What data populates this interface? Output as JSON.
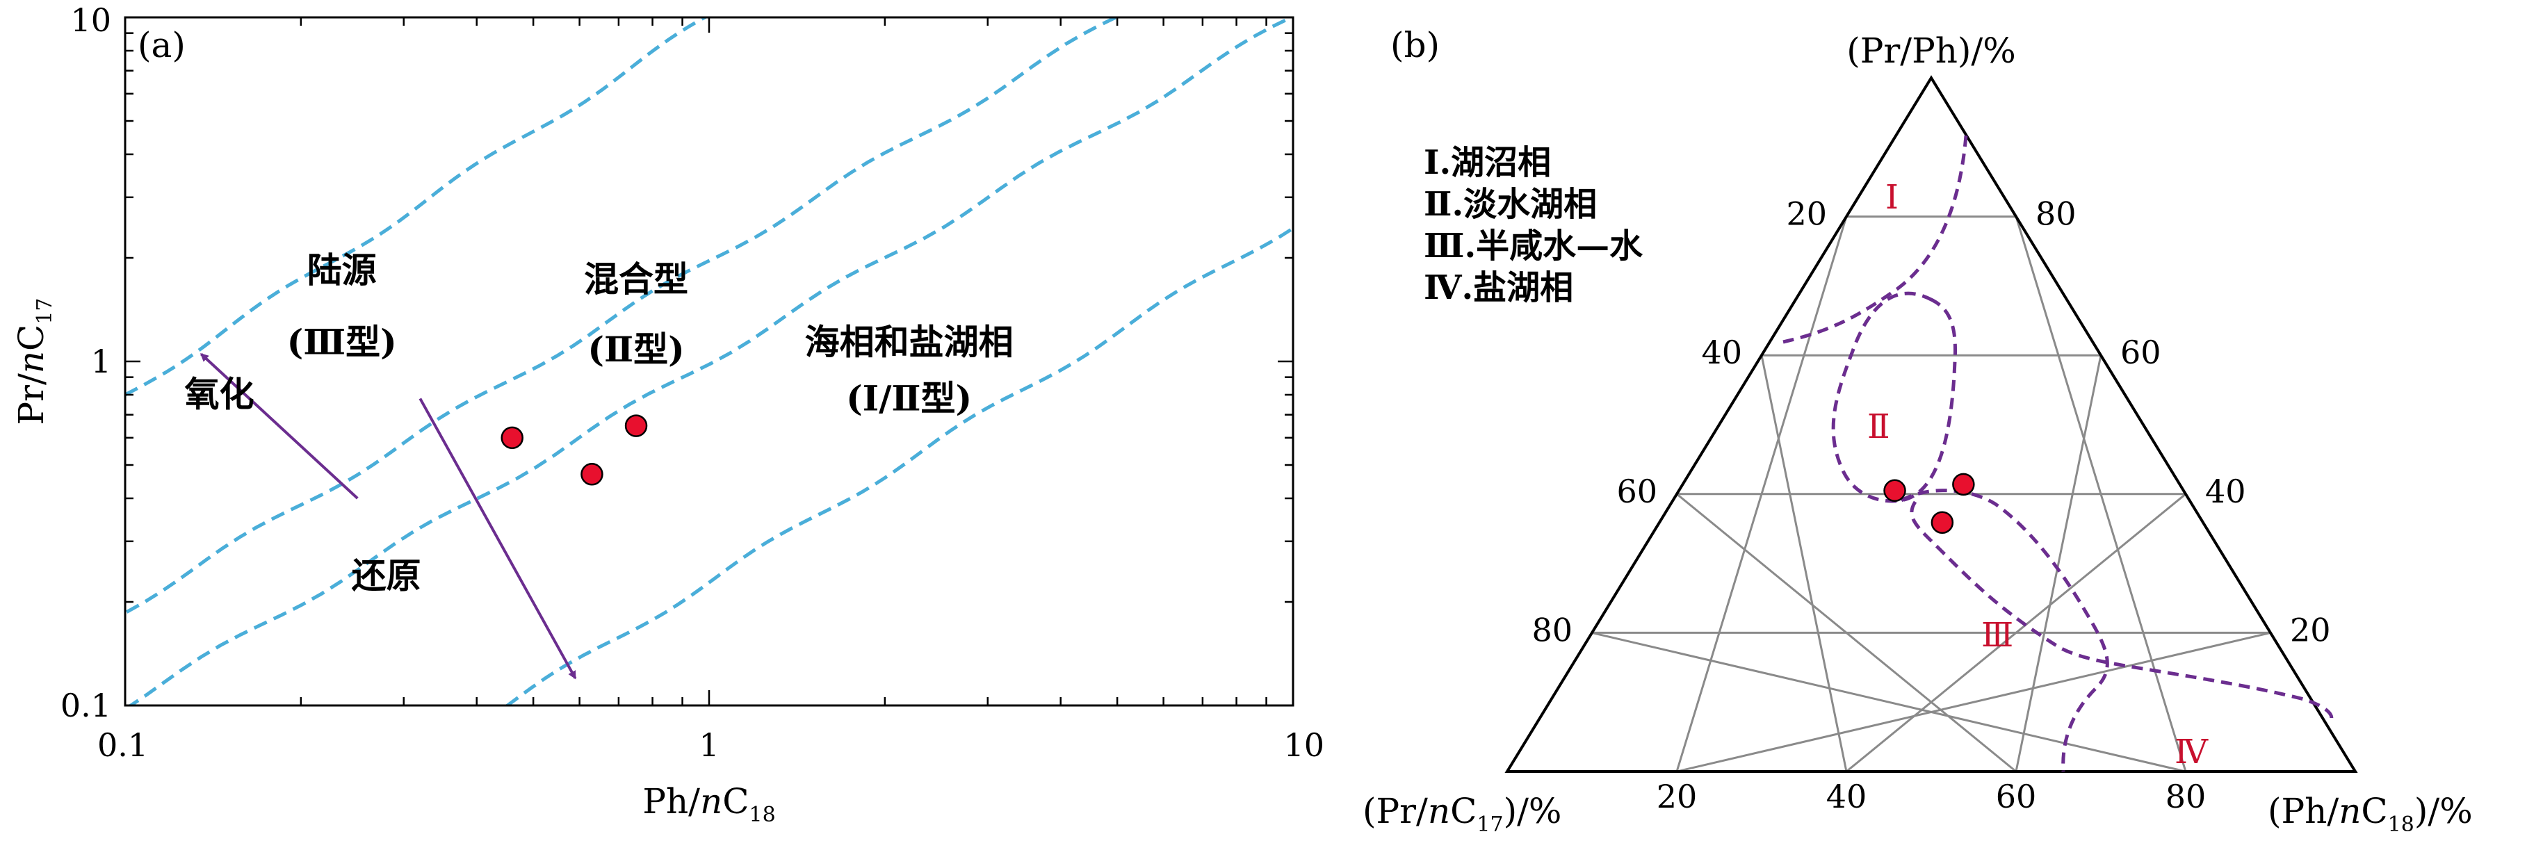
{
  "chart_data": [
    {
      "panel": "(a)",
      "type": "scatter",
      "x_scale": "log",
      "y_scale": "log",
      "xlim": [
        0.1,
        10
      ],
      "ylim": [
        0.1,
        10
      ],
      "xlabel_parts": [
        "Ph/",
        "n",
        "C",
        "18"
      ],
      "ylabel_parts": [
        "Pr/",
        "n",
        "C",
        "17"
      ],
      "x_ticks": [
        "0.1",
        "1",
        "10"
      ],
      "y_ticks": [
        "0.1",
        "1",
        "10"
      ],
      "grid": false,
      "points": [
        {
          "x": 0.46,
          "y": 0.6
        },
        {
          "x": 0.63,
          "y": 0.47
        },
        {
          "x": 0.75,
          "y": 0.65
        }
      ],
      "boundary_lines": [
        {
          "x": [
            0.1,
            1.0
          ],
          "y": [
            0.8,
            10.0
          ]
        },
        {
          "x": [
            0.1,
            5.0
          ],
          "y": [
            0.19,
            10.0
          ]
        },
        {
          "x": [
            0.1,
            10.0
          ],
          "y": [
            0.1,
            10.0
          ]
        },
        {
          "x": [
            0.45,
            10.0
          ],
          "y": [
            0.1,
            2.5
          ]
        }
      ],
      "region_labels": [
        {
          "lines": [
            "陆源",
            "(Ⅲ型)"
          ],
          "x": 0.235,
          "y": [
            1.7,
            1.05
          ]
        },
        {
          "lines": [
            "混合型",
            "(Ⅱ型)"
          ],
          "x": 0.75,
          "y": [
            1.6,
            1.0
          ]
        },
        {
          "lines": [
            "海相和盐湖相",
            "(Ⅰ/Ⅱ型)"
          ],
          "x": 2.2,
          "y": [
            1.05,
            0.72
          ]
        }
      ],
      "arrows": [
        {
          "label": "氧化",
          "from": {
            "x": 0.25,
            "y": 0.4
          },
          "to": {
            "x": 0.135,
            "y": 1.05
          },
          "label_at": {
            "x": 0.145,
            "y": 0.74
          }
        },
        {
          "label": "还原",
          "from": {
            "x": 0.32,
            "y": 0.78
          },
          "to": {
            "x": 0.59,
            "y": 0.12
          },
          "label_at": {
            "x": 0.28,
            "y": 0.22
          }
        }
      ]
    },
    {
      "panel": "(b)",
      "type": "ternary",
      "top_axis_label": "(Pr/Ph)/%",
      "left_axis_label_parts": [
        "(Pr/",
        "n",
        "C",
        "17",
        ")/%"
      ],
      "right_axis_label_parts": [
        "(Ph/",
        "n",
        "C",
        "18",
        ")/%"
      ],
      "left_side_ticks": [
        "20",
        "40",
        "60",
        "80"
      ],
      "right_side_ticks": [
        "80",
        "60",
        "40",
        "20"
      ],
      "bottom_ticks": [
        "20",
        "40",
        "60",
        "80"
      ],
      "grid_step_percent": 20,
      "legend": [
        "Ⅰ.湖沼相",
        "Ⅱ.淡水湖相",
        "Ⅲ.半咸水—水",
        "Ⅳ.盐湖相"
      ],
      "region_labels": [
        "Ⅰ",
        "Ⅱ",
        "Ⅲ",
        "Ⅳ"
      ],
      "points": [
        {
          "bottom_percent": 45.7,
          "top_percent": 40.5
        },
        {
          "bottom_percent": 53.8,
          "top_percent": 41.4
        },
        {
          "bottom_percent": 51.3,
          "top_percent": 35.9
        }
      ],
      "colors": {
        "boundary": "#6b2d8f",
        "point_fill": "#e8102e",
        "grid": "#8a8a8a",
        "label_red": "#c8102e"
      }
    }
  ],
  "colors": {
    "panel_a_lines": "#4aaed9",
    "arrow": "#6b2d8f"
  }
}
